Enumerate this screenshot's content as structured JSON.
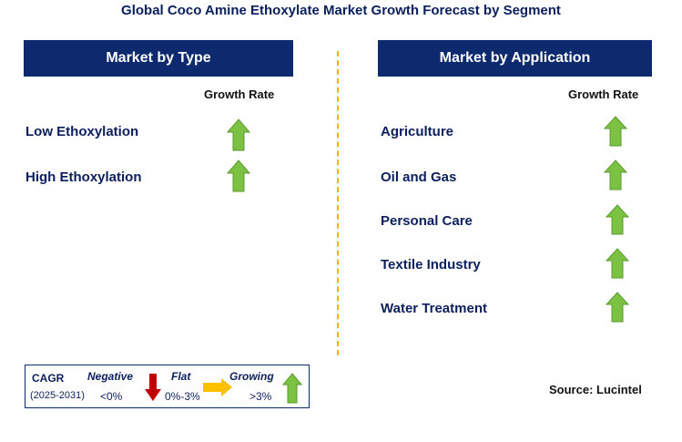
{
  "title": "Global Coco Amine Ethoxylate Market Growth Forecast by Segment",
  "left_panel": {
    "header": "Market by Type",
    "growth_label": "Growth Rate",
    "rows": [
      {
        "label": "Low Ethoxylation",
        "trend": "growing"
      },
      {
        "label": "High Ethoxylation",
        "trend": "growing"
      }
    ]
  },
  "right_panel": {
    "header": "Market by Application",
    "growth_label": "Growth Rate",
    "rows": [
      {
        "label": "Agriculture",
        "trend": "growing"
      },
      {
        "label": "Oil and Gas",
        "trend": "growing"
      },
      {
        "label": "Personal Care",
        "trend": "growing"
      },
      {
        "label": "Textile Industry",
        "trend": "growing"
      },
      {
        "label": "Water Treatment",
        "trend": "growing"
      }
    ]
  },
  "legend": {
    "cagr_label": "CAGR",
    "period": "(2025-2031)",
    "negative": {
      "label": "Negative",
      "range": "<0%",
      "icon": "down-arrow-icon",
      "color": "#c00000"
    },
    "flat": {
      "label": "Flat",
      "range": "0%-3%",
      "icon": "right-arrow-icon",
      "color": "#ffc000"
    },
    "growing": {
      "label": "Growing",
      "range": ">3%",
      "icon": "up-arrow-icon",
      "color": "#7cc242"
    }
  },
  "source": "Source: Lucintel",
  "colors": {
    "header_bg": "#0d2a6e",
    "title_text": "#0b1f5c",
    "divider": "#f0b400",
    "up_arrow": "#7cc242"
  }
}
